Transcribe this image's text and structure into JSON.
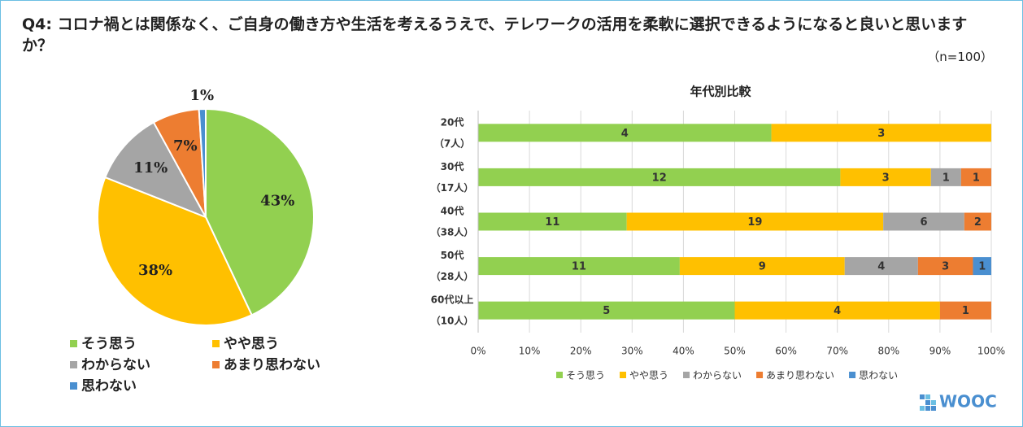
{
  "page": {
    "title": "Q4: コロナ禍とは関係なく、ご自身の働き方や生活を考えるうえで、テレワークの活用を柔軟に選択できるようになると良いと思いますか？",
    "sample_note": "（n=100）",
    "logo": "WOOC"
  },
  "chart_data": [
    {
      "type": "pie",
      "categories": [
        "そう思う",
        "やや思う",
        "わからない",
        "あまり思わない",
        "思わない"
      ],
      "values": [
        43,
        38,
        11,
        7,
        1
      ],
      "value_labels": [
        "43%",
        "38%",
        "11%",
        "7%",
        "1%"
      ],
      "colors": [
        "#92d050",
        "#ffc000",
        "#a5a5a5",
        "#ed7d31",
        "#4a8fd0"
      ]
    },
    {
      "type": "stacked-bar-percent",
      "title": "年代別比較",
      "categories": [
        "20代\n（7人）",
        "30代\n（17人）",
        "40代\n（38人）",
        "50代\n（28人）",
        "60代以上\n（10人）"
      ],
      "series": [
        {
          "name": "そう思う",
          "color": "#92d050",
          "values": [
            4,
            12,
            11,
            11,
            5
          ]
        },
        {
          "name": "やや思う",
          "color": "#ffc000",
          "values": [
            3,
            3,
            19,
            9,
            4
          ]
        },
        {
          "name": "わからない",
          "color": "#a5a5a5",
          "values": [
            null,
            1,
            6,
            4,
            null
          ]
        },
        {
          "name": "あまり思わない",
          "color": "#ed7d31",
          "values": [
            null,
            1,
            2,
            3,
            1
          ]
        },
        {
          "name": "思わない",
          "color": "#4a8fd0",
          "values": [
            null,
            null,
            null,
            1,
            null
          ]
        }
      ],
      "xlim": [
        0,
        100
      ],
      "xticks": [
        {
          "value": 0,
          "label": "0%"
        },
        {
          "value": 10,
          "label": "10%"
        },
        {
          "value": 20,
          "label": "20%"
        },
        {
          "value": 30,
          "label": "30%"
        },
        {
          "value": 40,
          "label": "40%"
        },
        {
          "value": 50,
          "label": "50%"
        },
        {
          "value": 60,
          "label": "60%"
        },
        {
          "value": 70,
          "label": "70%"
        },
        {
          "value": 80,
          "label": "80%"
        },
        {
          "value": 90,
          "label": "90%"
        },
        {
          "value": 100,
          "label": "100%"
        }
      ],
      "grid": true
    }
  ]
}
